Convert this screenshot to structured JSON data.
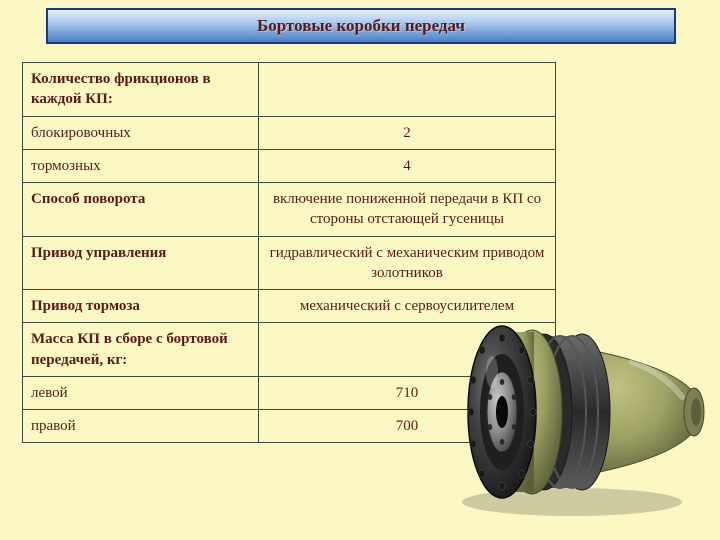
{
  "title": "Бортовые коробки передач",
  "rows": [
    {
      "label": "Количество фрикционов в каждой КП:",
      "value": "",
      "bold": true
    },
    {
      "label": "блокировочных",
      "value": "2",
      "bold": false
    },
    {
      "label": "тормозных",
      "value": "4",
      "bold": false
    },
    {
      "label": "Способ поворота",
      "value": "включение пониженной передачи в КП со стороны отстающей гусеницы",
      "bold": true
    },
    {
      "label": "Привод управления",
      "value": "гидравлический с механическим приводом золотников",
      "bold": true
    },
    {
      "label": "Привод тормоза",
      "value": "механический с сервоусилителем",
      "bold": true
    },
    {
      "label": "Масса КП в сборе с бортовой передачей, кг:",
      "value": "",
      "bold": true
    },
    {
      "label": "левой",
      "value": "710",
      "bold": false
    },
    {
      "label": "правой",
      "value": "700",
      "bold": false
    }
  ],
  "colors": {
    "page_bg": "#fbf8c4",
    "title_gradient_top": "#e8f0fa",
    "title_gradient_bottom": "#4a7fc4",
    "title_border": "#1a3a7a",
    "text": "#5a1a1a",
    "table_border": "#3a4a3a"
  },
  "gearbox": {
    "body_color": "#9ea263",
    "body_shadow": "#5c5f3a",
    "flange_dark": "#2a2a2a",
    "flange_mid": "#454545",
    "flange_light": "#6a6a6a",
    "center_hub": "#888888",
    "center_hole": "#1a1a1a",
    "bolt": "#333333",
    "highlight": "#c8c8c8"
  }
}
